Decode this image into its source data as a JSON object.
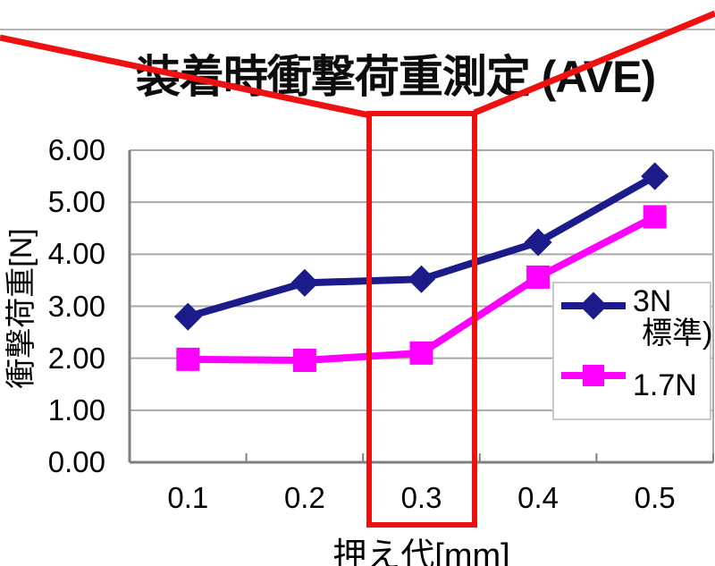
{
  "title": "装着時衝撃荷重測定 (AVE)",
  "chart_data": {
    "type": "line",
    "title": "装着時衝撃荷重測定 (AVE)",
    "x": [
      0.1,
      0.2,
      0.3,
      0.4,
      0.5
    ],
    "x_tick_labels": [
      "0.1",
      "0.2",
      "0.3",
      "0.4",
      "0.5"
    ],
    "series": [
      {
        "name": "3N（標準）",
        "legend_lines": [
          "3N",
          "標準)"
        ],
        "color": "#1b1b8a",
        "marker": "diamond",
        "values": [
          2.8,
          3.45,
          3.52,
          4.23,
          5.5
        ]
      },
      {
        "name": "1.7N",
        "legend_lines": [
          "1.7N"
        ],
        "color": "#ff00ff",
        "marker": "square",
        "values": [
          1.98,
          1.96,
          2.1,
          3.56,
          4.72
        ]
      }
    ],
    "xlabel": "押え代[mm]",
    "ylabel": "衝撃荷重[N]",
    "ylim": [
      0,
      6
    ],
    "y_tick_step": 1,
    "y_tick_labels": [
      "0.00",
      "1.00",
      "2.00",
      "3.00",
      "4.00",
      "5.00",
      "6.00"
    ],
    "grid": true,
    "legend_position": "inside-right",
    "annotation_highlighted_category": "0.3"
  },
  "colors": {
    "series_3n": "#1b1b8a",
    "series_1_7n": "#ff00ff",
    "annotation_red": "#ee1111",
    "axis": "#7f7f7f",
    "grid": "#a8a8a8",
    "legend_border": "#c9c9c9",
    "top_rule": "#b5b5b5"
  }
}
